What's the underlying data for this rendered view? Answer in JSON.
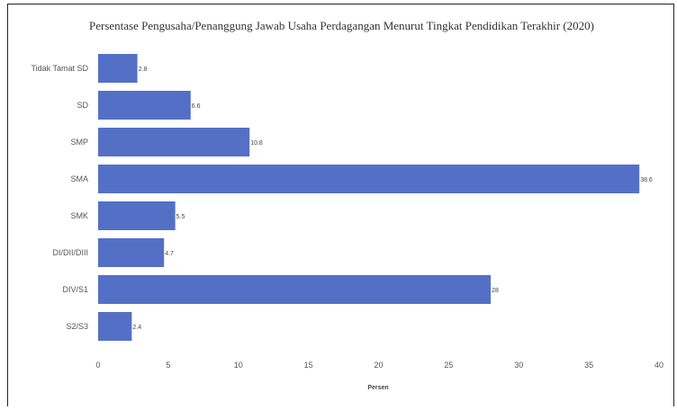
{
  "chart_data": {
    "type": "bar",
    "orientation": "horizontal",
    "title": "Persentase Pengusaha/Penanggung Jawab Usaha Perdagangan Menurut Tingkat Pendidikan Terakhir (2020)",
    "categories": [
      "Tidak Tamat SD",
      "SD",
      "SMP",
      "SMA",
      "SMK",
      "DI/DII/DIII",
      "DIV/S1",
      "S2/S3"
    ],
    "values": [
      2.8,
      6.6,
      10.8,
      38.6,
      5.5,
      4.7,
      28,
      2.4
    ],
    "value_labels": [
      "2.8",
      "6.6",
      "10.8",
      "38.6",
      "5.5",
      "4.7",
      "28",
      "2.4"
    ],
    "xlabel": "Persen",
    "ylabel": "",
    "xlim": [
      0,
      40
    ],
    "xticks": [
      0,
      5,
      10,
      15,
      20,
      25,
      30,
      35,
      40
    ],
    "grid": false,
    "bar_color": "#5470c6"
  }
}
